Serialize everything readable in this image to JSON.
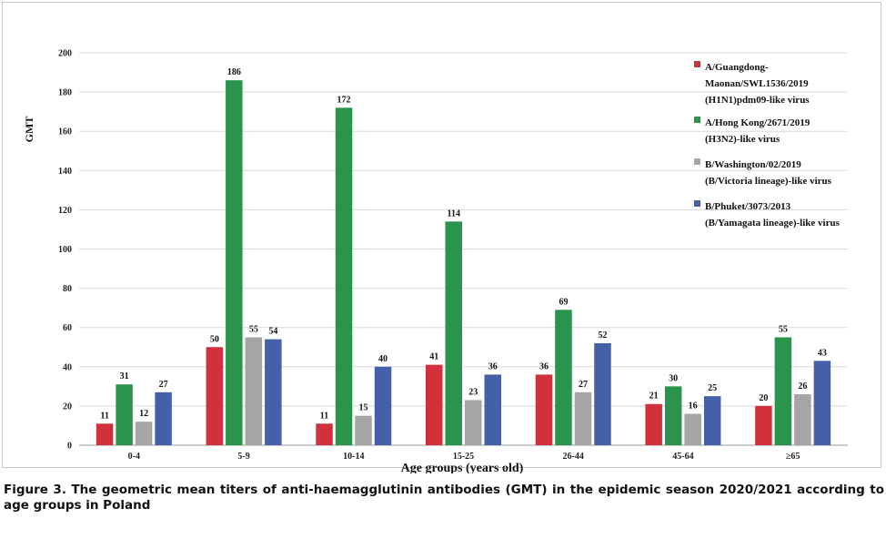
{
  "chart_data": {
    "type": "bar",
    "xlabel": "Age groups (years old)",
    "ylabel": "GMT",
    "ylim": [
      0,
      200
    ],
    "yticks": [
      "0",
      "20",
      "40",
      "60",
      "80",
      "100",
      "120",
      "140",
      "160",
      "180",
      "200"
    ],
    "categories": [
      "0-4",
      "5-9",
      "10-14",
      "15-25",
      "26-44",
      "45-64",
      "≥65"
    ],
    "legend_position": "top-right",
    "grid": "horizontal",
    "series": [
      {
        "name": "A/Guangdong-\nMaonan/SWL1536/2019\n(H1N1)pdm09-like virus",
        "color": "#d0313a",
        "values": [
          11,
          50,
          11,
          41,
          36,
          21,
          20
        ]
      },
      {
        "name": "A/Hong Kong/2671/2019\n(H3N2)-like virus",
        "color": "#2a944c",
        "values": [
          31,
          186,
          172,
          114,
          69,
          30,
          55
        ]
      },
      {
        "name": "B/Washington/02/2019\n(B/Victoria lineage)-like virus",
        "color": "#a5a5a5",
        "values": [
          12,
          55,
          15,
          23,
          27,
          16,
          26
        ]
      },
      {
        "name": "B/Phuket/3073/2013\n(B/Yamagata lineage)-like virus",
        "color": "#4460a8",
        "values": [
          27,
          54,
          40,
          36,
          52,
          25,
          43
        ]
      }
    ]
  },
  "caption": "Figure 3. The geometric mean titers of anti-haemagglutinin antibodies (GMT) in the epidemic season 2020/2021 according to age groups in Poland"
}
